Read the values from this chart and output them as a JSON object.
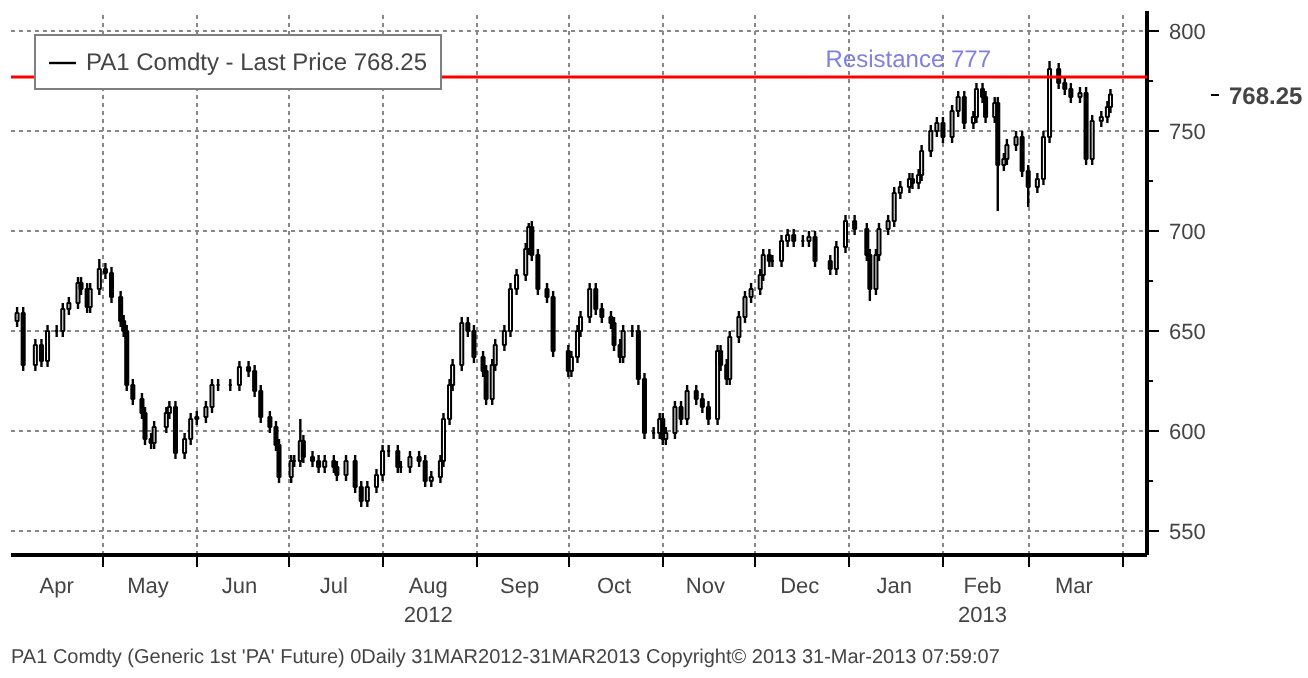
{
  "chart_data": {
    "type": "candlestick",
    "annotations": [
      "768.25",
      "PA1 Comdty (Generic 1st 'PA' Future) 0Daily 31MAR2012-31MAR2013 Copyright© 2013 31-Mar-2013 07:59:07"
    ],
    "x": [
      "2012-04-03",
      "2012-04-05",
      "2012-04-09",
      "2012-04-11",
      "2012-04-13",
      "2012-04-16",
      "2012-04-18",
      "2012-04-20",
      "2012-04-23",
      "2012-04-24",
      "2012-04-26",
      "2012-04-27",
      "2012-04-30",
      "2012-05-02",
      "2012-05-04",
      "2012-05-07",
      "2012-05-08",
      "2012-05-09",
      "2012-05-11",
      "2012-05-14",
      "2012-05-15",
      "2012-05-17",
      "2012-05-18",
      "2012-05-22",
      "2012-05-23",
      "2012-05-25",
      "2012-05-28",
      "2012-05-30",
      "2012-06-01",
      "2012-06-04",
      "2012-06-06",
      "2012-06-08",
      "2012-06-12",
      "2012-06-15",
      "2012-06-18",
      "2012-06-20",
      "2012-06-22",
      "2012-06-25",
      "2012-06-27",
      "2012-06-28",
      "2012-07-02",
      "2012-07-03",
      "2012-07-05",
      "2012-07-06",
      "2012-07-09",
      "2012-07-11",
      "2012-07-13",
      "2012-07-16",
      "2012-07-17",
      "2012-07-20",
      "2012-07-23",
      "2012-07-25",
      "2012-07-27",
      "2012-07-30",
      "2012-08-01",
      "2012-08-03",
      "2012-08-06",
      "2012-08-07",
      "2012-08-10",
      "2012-08-13",
      "2012-08-15",
      "2012-08-17",
      "2012-08-20",
      "2012-08-21",
      "2012-08-23",
      "2012-08-24",
      "2012-08-27",
      "2012-08-29",
      "2012-08-31",
      "2012-09-03",
      "2012-09-04",
      "2012-09-06",
      "2012-09-07",
      "2012-09-10",
      "2012-09-12",
      "2012-09-14",
      "2012-09-17",
      "2012-09-18",
      "2012-09-19",
      "2012-09-21",
      "2012-09-24",
      "2012-09-26",
      "2012-10-01",
      "2012-10-02",
      "2012-10-04",
      "2012-10-05",
      "2012-10-08",
      "2012-10-10",
      "2012-10-12",
      "2012-10-15",
      "2012-10-16",
      "2012-10-18",
      "2012-10-19",
      "2012-10-22",
      "2012-10-24",
      "2012-10-26",
      "2012-10-29",
      "2012-10-31",
      "2012-11-01",
      "2012-11-02",
      "2012-11-05",
      "2012-11-07",
      "2012-11-09",
      "2012-11-12",
      "2012-11-14",
      "2012-11-16",
      "2012-11-19",
      "2012-11-20",
      "2012-11-22",
      "2012-11-23",
      "2012-11-26",
      "2012-11-28",
      "2012-11-30",
      "2012-12-03",
      "2012-12-04",
      "2012-12-06",
      "2012-12-07",
      "2012-12-10",
      "2012-12-12",
      "2012-12-14",
      "2012-12-17",
      "2012-12-19",
      "2012-12-21",
      "2012-12-26",
      "2012-12-28",
      "2012-12-31",
      "2013-01-03",
      "2013-01-07",
      "2013-01-08",
      "2013-01-10",
      "2013-01-11",
      "2013-01-14",
      "2013-01-16",
      "2013-01-18",
      "2013-01-21",
      "2013-01-22",
      "2013-01-24",
      "2013-01-25",
      "2013-01-28",
      "2013-01-30",
      "2013-02-01",
      "2013-02-04",
      "2013-02-06",
      "2013-02-08",
      "2013-02-11",
      "2013-02-12",
      "2013-02-14",
      "2013-02-15",
      "2013-02-18",
      "2013-02-19",
      "2013-02-21",
      "2013-02-22",
      "2013-02-25",
      "2013-02-27",
      "2013-03-01",
      "2013-03-04",
      "2013-03-06",
      "2013-03-08",
      "2013-03-11",
      "2013-03-13",
      "2013-03-15",
      "2013-03-18",
      "2013-03-20",
      "2013-03-22",
      "2013-03-25",
      "2013-03-27",
      "2013-03-28"
    ],
    "series": [
      {
        "name": "PA1 Comdty - Last Price 768.25",
        "color": "#000000",
        "ohlc": [
          [
            655,
            662,
            652,
            659
          ],
          [
            659,
            662,
            630,
            633
          ],
          [
            633,
            646,
            630,
            643
          ],
          [
            643,
            646,
            632,
            635
          ],
          [
            635,
            653,
            632,
            650
          ],
          [
            650,
            653,
            647,
            650
          ],
          [
            650,
            664,
            647,
            661
          ],
          [
            661,
            667,
            658,
            664
          ],
          [
            664,
            677,
            661,
            674
          ],
          [
            674,
            677,
            668,
            671
          ],
          [
            671,
            674,
            659,
            662
          ],
          [
            662,
            674,
            659,
            671
          ],
          [
            671,
            686,
            668,
            681
          ],
          [
            681,
            684,
            676,
            679
          ],
          [
            679,
            682,
            664,
            667
          ],
          [
            667,
            670,
            652,
            655
          ],
          [
            655,
            658,
            647,
            650
          ],
          [
            650,
            653,
            620,
            623
          ],
          [
            623,
            626,
            613,
            616
          ],
          [
            616,
            619,
            606,
            609
          ],
          [
            609,
            612,
            593,
            596
          ],
          [
            596,
            599,
            591,
            594
          ],
          [
            594,
            605,
            591,
            602
          ],
          [
            602,
            612,
            599,
            609
          ],
          [
            609,
            615,
            606,
            612
          ],
          [
            612,
            615,
            586,
            589
          ],
          [
            589,
            599,
            586,
            596
          ],
          [
            596,
            609,
            593,
            606
          ],
          [
            606,
            610,
            603,
            607
          ],
          [
            607,
            615,
            604,
            612
          ],
          [
            612,
            626,
            609,
            623
          ],
          [
            623,
            626,
            620,
            623
          ],
          [
            623,
            626,
            620,
            623
          ],
          [
            623,
            635,
            620,
            632
          ],
          [
            632,
            635,
            627,
            630
          ],
          [
            630,
            633,
            617,
            620
          ],
          [
            620,
            623,
            604,
            607
          ],
          [
            607,
            610,
            599,
            602
          ],
          [
            602,
            605,
            590,
            593
          ],
          [
            593,
            596,
            574,
            577
          ],
          [
            577,
            588,
            574,
            585
          ],
          [
            585,
            588,
            582,
            585
          ],
          [
            585,
            606,
            582,
            595
          ],
          [
            595,
            598,
            584,
            587
          ],
          [
            587,
            590,
            582,
            585
          ],
          [
            585,
            588,
            579,
            582
          ],
          [
            582,
            588,
            579,
            585
          ],
          [
            585,
            588,
            579,
            582
          ],
          [
            582,
            585,
            575,
            578
          ],
          [
            578,
            588,
            575,
            585
          ],
          [
            585,
            588,
            569,
            572
          ],
          [
            572,
            575,
            562,
            565
          ],
          [
            565,
            575,
            562,
            572
          ],
          [
            572,
            581,
            569,
            578
          ],
          [
            578,
            593,
            575,
            590
          ],
          [
            590,
            593,
            587,
            590
          ],
          [
            590,
            593,
            579,
            582
          ],
          [
            582,
            585,
            579,
            582
          ],
          [
            582,
            590,
            579,
            587
          ],
          [
            587,
            590,
            582,
            585
          ],
          [
            585,
            588,
            572,
            575
          ],
          [
            575,
            580,
            572,
            577
          ],
          [
            577,
            588,
            574,
            585
          ],
          [
            585,
            609,
            582,
            606
          ],
          [
            606,
            626,
            603,
            623
          ],
          [
            623,
            636,
            620,
            633
          ],
          [
            633,
            657,
            630,
            654
          ],
          [
            654,
            657,
            647,
            650
          ],
          [
            650,
            653,
            634,
            637
          ],
          [
            637,
            640,
            627,
            630
          ],
          [
            630,
            633,
            613,
            616
          ],
          [
            616,
            636,
            613,
            633
          ],
          [
            633,
            646,
            630,
            643
          ],
          [
            643,
            653,
            640,
            650
          ],
          [
            650,
            674,
            647,
            671
          ],
          [
            671,
            681,
            668,
            678
          ],
          [
            678,
            694,
            675,
            691
          ],
          [
            691,
            704,
            688,
            702
          ],
          [
            702,
            705,
            685,
            688
          ],
          [
            688,
            691,
            668,
            671
          ],
          [
            671,
            674,
            664,
            667
          ],
          [
            667,
            670,
            637,
            640
          ],
          [
            640,
            643,
            627,
            630
          ],
          [
            630,
            640,
            627,
            637
          ],
          [
            637,
            653,
            634,
            650
          ],
          [
            650,
            660,
            647,
            657
          ],
          [
            657,
            674,
            654,
            671
          ],
          [
            671,
            674,
            658,
            661
          ],
          [
            661,
            664,
            654,
            657
          ],
          [
            657,
            660,
            651,
            654
          ],
          [
            654,
            657,
            640,
            643
          ],
          [
            643,
            646,
            634,
            637
          ],
          [
            637,
            653,
            634,
            650
          ],
          [
            650,
            653,
            647,
            650
          ],
          [
            650,
            653,
            623,
            626
          ],
          [
            626,
            629,
            596,
            599
          ],
          [
            599,
            602,
            596,
            599
          ],
          [
            599,
            609,
            596,
            606
          ],
          [
            606,
            609,
            593,
            596
          ],
          [
            596,
            602,
            593,
            599
          ],
          [
            599,
            615,
            596,
            612
          ],
          [
            612,
            615,
            603,
            606
          ],
          [
            606,
            623,
            603,
            620
          ],
          [
            620,
            623,
            613,
            616
          ],
          [
            616,
            619,
            609,
            612
          ],
          [
            612,
            615,
            603,
            606
          ],
          [
            606,
            643,
            603,
            640
          ],
          [
            640,
            643,
            630,
            633
          ],
          [
            633,
            636,
            623,
            626
          ],
          [
            626,
            650,
            623,
            647
          ],
          [
            647,
            660,
            644,
            657
          ],
          [
            657,
            670,
            654,
            667
          ],
          [
            667,
            674,
            664,
            671
          ],
          [
            671,
            681,
            668,
            678
          ],
          [
            678,
            691,
            675,
            688
          ],
          [
            688,
            691,
            682,
            685
          ],
          [
            685,
            688,
            682,
            685
          ],
          [
            685,
            698,
            682,
            695
          ],
          [
            695,
            701,
            692,
            698
          ],
          [
            698,
            701,
            692,
            695
          ],
          [
            695,
            698,
            692,
            695
          ],
          [
            695,
            700,
            692,
            697
          ],
          [
            697,
            700,
            682,
            685
          ],
          [
            685,
            688,
            678,
            681
          ],
          [
            681,
            695,
            678,
            692
          ],
          [
            692,
            708,
            689,
            705
          ],
          [
            705,
            708,
            698,
            701
          ],
          [
            701,
            704,
            685,
            688
          ],
          [
            688,
            691,
            665,
            671
          ],
          [
            671,
            691,
            668,
            688
          ],
          [
            688,
            704,
            685,
            701
          ],
          [
            701,
            708,
            698,
            705
          ],
          [
            705,
            722,
            702,
            719
          ],
          [
            719,
            725,
            716,
            722
          ],
          [
            722,
            729,
            719,
            726
          ],
          [
            726,
            729,
            721,
            724
          ],
          [
            724,
            731,
            721,
            728
          ],
          [
            728,
            743,
            725,
            740
          ],
          [
            740,
            753,
            737,
            750
          ],
          [
            750,
            757,
            747,
            754
          ],
          [
            754,
            757,
            744,
            747
          ],
          [
            747,
            763,
            744,
            760
          ],
          [
            760,
            770,
            757,
            767
          ],
          [
            767,
            770,
            751,
            754
          ],
          [
            754,
            760,
            751,
            757
          ],
          [
            757,
            774,
            754,
            771
          ],
          [
            771,
            774,
            764,
            767
          ],
          [
            767,
            770,
            754,
            757
          ],
          [
            757,
            767,
            754,
            764
          ],
          [
            764,
            767,
            710,
            733
          ],
          [
            733,
            739,
            730,
            736
          ],
          [
            736,
            746,
            733,
            743
          ],
          [
            743,
            750,
            740,
            747
          ],
          [
            747,
            750,
            727,
            730
          ],
          [
            730,
            733,
            712,
            722
          ],
          [
            722,
            729,
            719,
            726
          ],
          [
            726,
            750,
            723,
            747
          ],
          [
            747,
            785,
            744,
            781
          ],
          [
            781,
            784,
            771,
            774
          ],
          [
            774,
            777,
            768,
            771
          ],
          [
            771,
            774,
            764,
            767
          ],
          [
            767,
            772,
            764,
            769
          ],
          [
            769,
            772,
            733,
            736
          ],
          [
            736,
            758,
            733,
            755
          ],
          [
            755,
            760,
            752,
            757
          ],
          [
            757,
            765,
            754,
            762
          ],
          [
            762,
            771,
            759,
            768.25
          ]
        ]
      }
    ],
    "xlim": [
      "2012-04-01",
      "2013-04-09"
    ],
    "xticks": [
      {
        "value": "2012-04-16",
        "label": "Apr"
      },
      {
        "value": "2012-05-01",
        "label": null
      },
      {
        "value": "2012-05-16",
        "label": "May"
      },
      {
        "value": "2012-06-01",
        "label": null
      },
      {
        "value": "2012-06-15",
        "label": "Jun"
      },
      {
        "value": "2012-07-01",
        "label": null
      },
      {
        "value": "2012-07-16",
        "label": "Jul"
      },
      {
        "value": "2012-08-01",
        "label": null
      },
      {
        "value": "2012-08-16",
        "label": "Aug\n2012"
      },
      {
        "value": "2012-09-01",
        "label": null
      },
      {
        "value": "2012-09-15",
        "label": "Sep"
      },
      {
        "value": "2012-10-01",
        "label": null
      },
      {
        "value": "2012-10-16",
        "label": "Oct"
      },
      {
        "value": "2012-11-01",
        "label": null
      },
      {
        "value": "2012-11-15",
        "label": "Nov"
      },
      {
        "value": "2012-12-01",
        "label": null
      },
      {
        "value": "2012-12-16",
        "label": "Dec"
      },
      {
        "value": "2013-01-01",
        "label": null
      },
      {
        "value": "2013-01-16",
        "label": "Jan"
      },
      {
        "value": "2013-02-01",
        "label": null
      },
      {
        "value": "2013-02-14",
        "label": "Feb\n2013"
      },
      {
        "value": "2013-03-01",
        "label": null
      },
      {
        "value": "2013-03-16",
        "label": "Mar"
      },
      {
        "value": "2013-04-01",
        "label": null
      }
    ],
    "ylim": [
      538,
      810
    ],
    "yticks": [
      550,
      {
        "value": 575,
        "label": null
      },
      600,
      {
        "value": 625,
        "label": null
      },
      650,
      {
        "value": 675,
        "label": null
      },
      700,
      {
        "value": 725,
        "label": null
      },
      750,
      {
        "value": 775,
        "label": null
      },
      800
    ],
    "ref_lines": [
      {
        "axis": "y",
        "value": 777,
        "label": "Resistance 777",
        "color": "#ff0000"
      }
    ],
    "grid": true,
    "legend": "top left"
  }
}
